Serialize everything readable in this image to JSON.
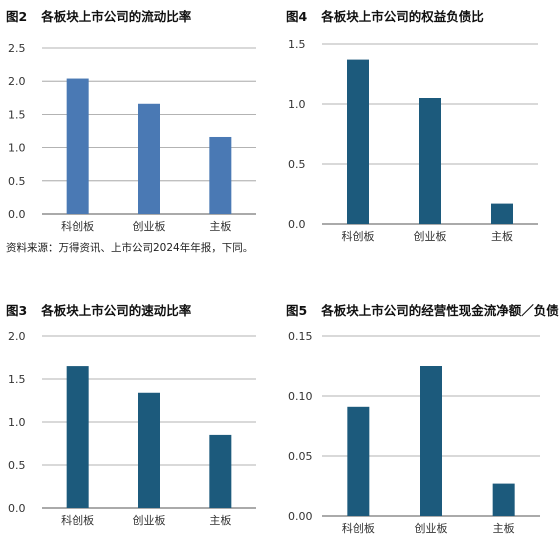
{
  "charts": [
    {
      "prefix": "图2",
      "title": "各板块上市公司的流动比率"
    },
    {
      "prefix": "图4",
      "title": "各板块上市公司的权益负债比"
    },
    {
      "prefix": "图3",
      "title": "各板块上市公司的速动比率"
    },
    {
      "prefix": "图5",
      "title": "各板块上市公司的经营性现金流净额／负债"
    }
  ],
  "source_note": "资料来源：万得资讯、上市公司2024年年报，下同。",
  "chart_data": [
    {
      "type": "bar",
      "title": "各板块上市公司的流动比率",
      "categories": [
        "科创板",
        "创业板",
        "主板"
      ],
      "values": [
        2.04,
        1.66,
        1.16
      ],
      "yticks": [
        "0.0",
        "0.5",
        "1.0",
        "1.5",
        "2.0",
        "2.5"
      ],
      "ylim": [
        0,
        2.5
      ],
      "bar_color": "#4a79b4",
      "grid": true
    },
    {
      "type": "bar",
      "title": "各板块上市公司的权益负债比",
      "categories": [
        "科创板",
        "创业板",
        "主板"
      ],
      "values": [
        1.37,
        1.05,
        0.17
      ],
      "yticks": [
        "0.0",
        "0.5",
        "1.0",
        "1.5"
      ],
      "ylim": [
        0,
        1.5
      ],
      "bar_color": "#1c5a7c",
      "grid": true
    },
    {
      "type": "bar",
      "title": "各板块上市公司的速动比率",
      "categories": [
        "科创板",
        "创业板",
        "主板"
      ],
      "values": [
        1.65,
        1.34,
        0.85
      ],
      "yticks": [
        "0.0",
        "0.5",
        "1.0",
        "1.5",
        "2.0"
      ],
      "ylim": [
        0,
        2.0
      ],
      "bar_color": "#1c5a7c",
      "grid": true
    },
    {
      "type": "bar",
      "title": "各板块上市公司的经营性现金流净额／负债",
      "categories": [
        "科创板",
        "创业板",
        "主板"
      ],
      "values": [
        0.091,
        0.125,
        0.027
      ],
      "yticks": [
        "0.00",
        "0.05",
        "0.10",
        "0.15"
      ],
      "ylim": [
        0,
        0.15
      ],
      "bar_color": "#1c5a7c",
      "grid": true
    }
  ]
}
